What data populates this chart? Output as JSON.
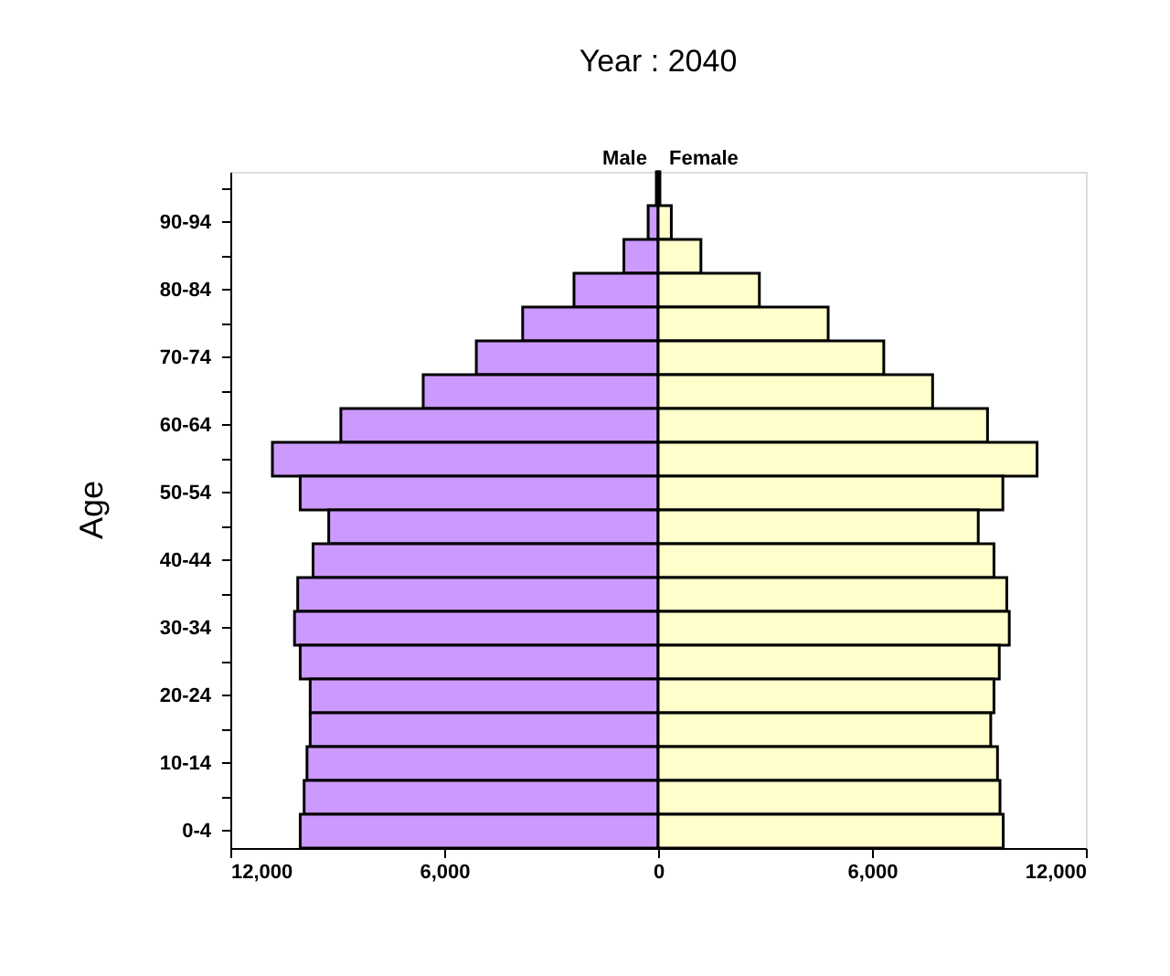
{
  "chart_data": {
    "type": "bar",
    "orientation": "horizontal",
    "stacked": true,
    "title": "Year : 2040",
    "ylabel": "Age",
    "categories": [
      null,
      "90-94",
      null,
      "80-84",
      null,
      "70-74",
      null,
      "60-64",
      null,
      "50-54",
      null,
      "40-44",
      null,
      "30-34",
      null,
      "20-24",
      null,
      "10-14",
      null,
      "0-4"
    ],
    "series": [
      {
        "name": "Male",
        "color": "#cc99ff",
        "values": [
          -50,
          -280,
          -960,
          -2360,
          -3800,
          -5100,
          -6590,
          -8900,
          -10820,
          -10040,
          -9240,
          -9680,
          -10110,
          -10200,
          -10040,
          -9760,
          -9760,
          -9850,
          -9930,
          -10040
        ]
      },
      {
        "name": "Female",
        "color": "#ffffcc",
        "values": [
          50,
          370,
          1200,
          2840,
          4770,
          6330,
          7700,
          9240,
          10630,
          9670,
          8980,
          9420,
          9780,
          9850,
          9570,
          9420,
          9330,
          9520,
          9590,
          9680
        ]
      }
    ],
    "xlim": [
      -12000,
      12000
    ],
    "xticks": [
      {
        "value": -12000,
        "label": "12,000"
      },
      {
        "value": -6000,
        "label": "6,000"
      },
      0,
      {
        "value": 6000,
        "label": "6,000"
      },
      {
        "value": 12000,
        "label": "12,000"
      }
    ],
    "grid": false,
    "legend": false
  }
}
